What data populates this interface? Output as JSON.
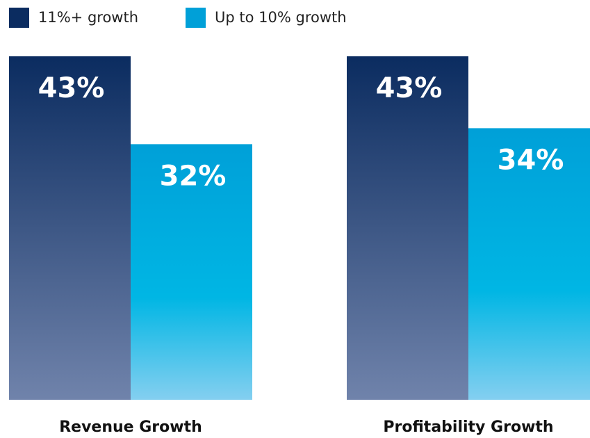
{
  "chart_data": {
    "type": "bar",
    "categories": [
      "Revenue Growth",
      "Profitability Growth"
    ],
    "series": [
      {
        "name": "11%+ growth",
        "color": "#0b2c60",
        "values": [
          43,
          43
        ],
        "value_labels": [
          "43%",
          "43%"
        ]
      },
      {
        "name": "Up to 10% growth",
        "color": "#00a0d8",
        "values": [
          32,
          34
        ],
        "value_labels": [
          "32%",
          "34%"
        ]
      }
    ]
  }
}
